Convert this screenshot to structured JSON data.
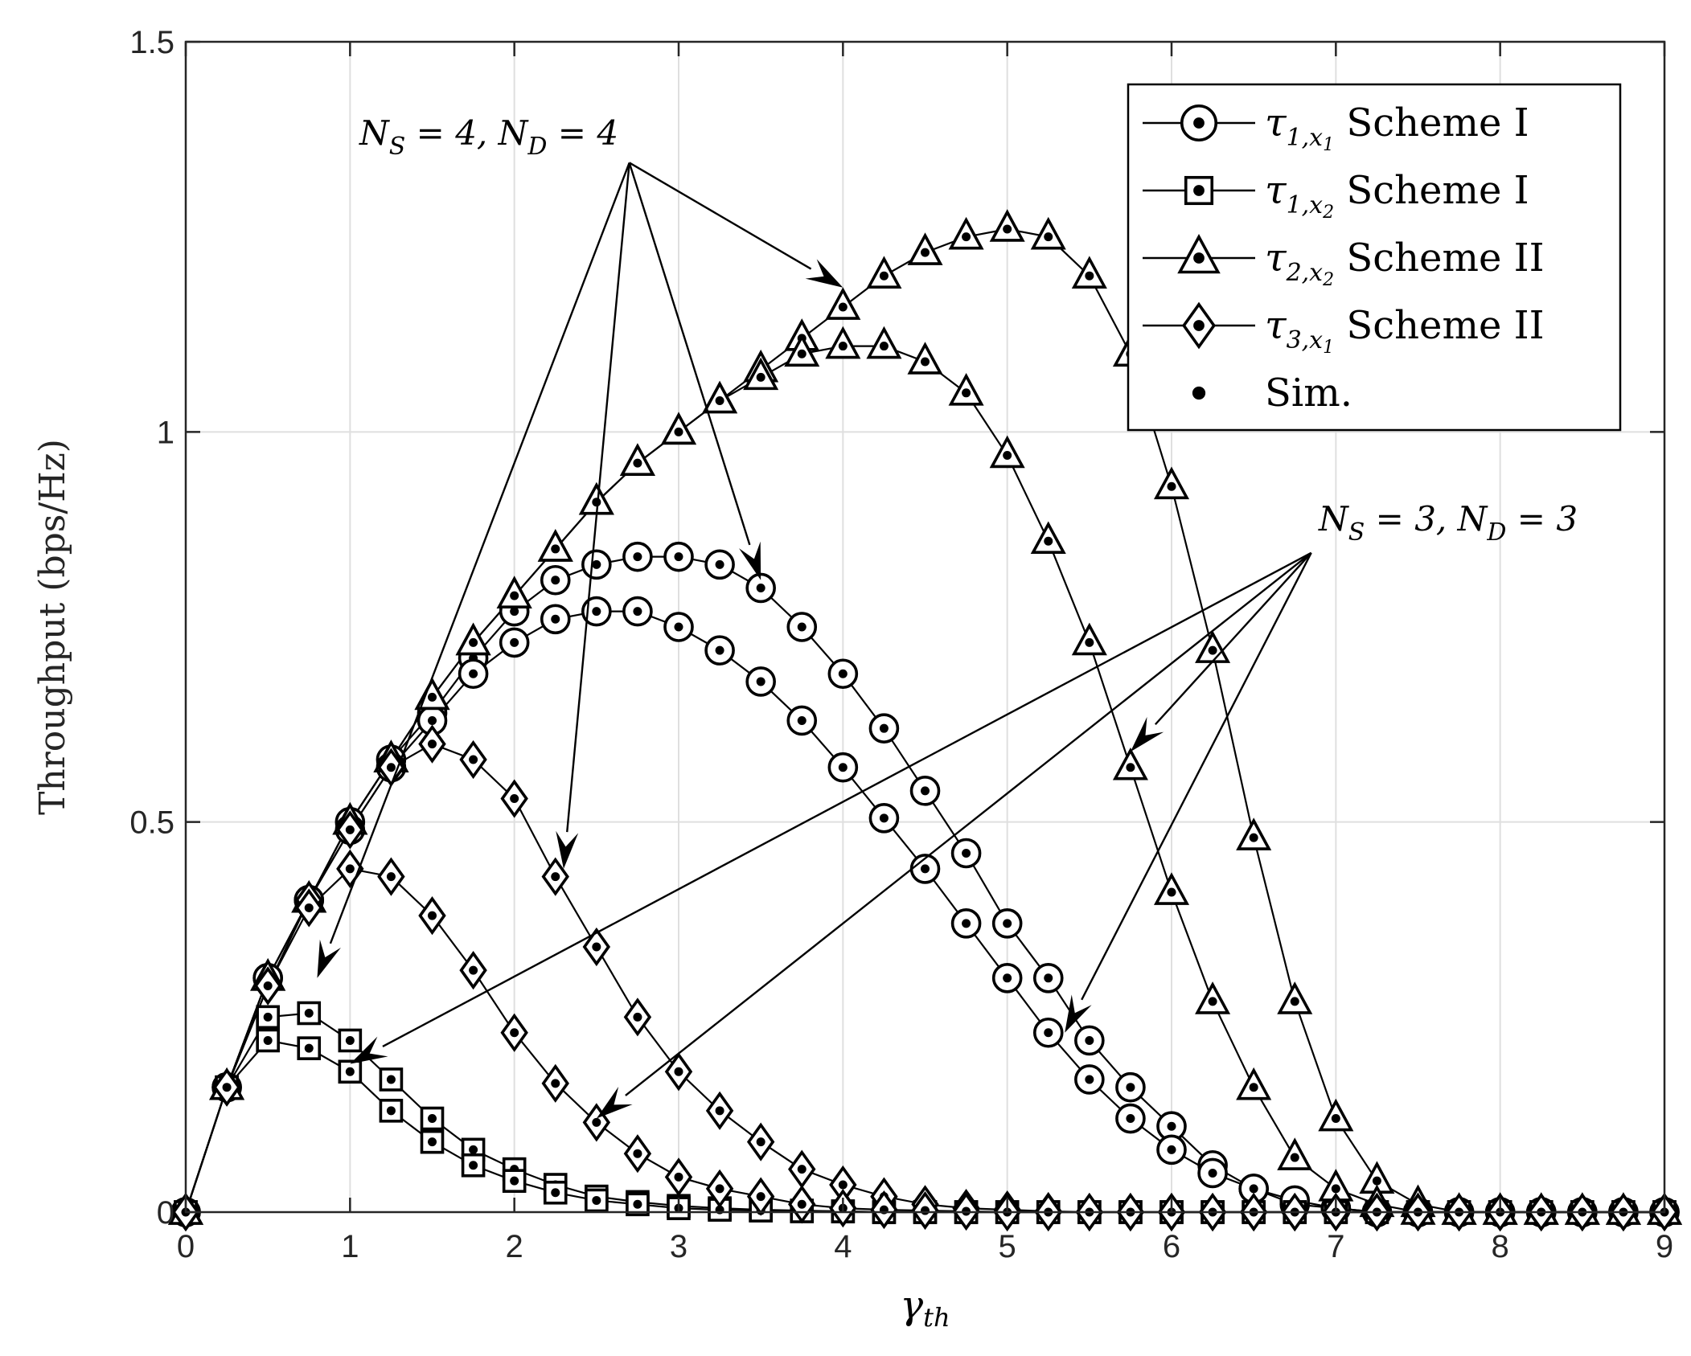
{
  "chart_data": {
    "type": "line",
    "xlabel": "γ",
    "xlabel_sub": "th",
    "ylabel": "Throughput (bps/Hz)",
    "xlim": [
      0,
      9
    ],
    "ylim": [
      0,
      1.5
    ],
    "xticks": [
      0,
      1,
      2,
      3,
      4,
      5,
      6,
      7,
      8,
      9
    ],
    "xtick_labels": [
      "0",
      "1",
      "2",
      "3",
      "4",
      "5",
      "6",
      "7",
      "8",
      "9"
    ],
    "yticks": [
      0,
      0.5,
      1,
      1.5
    ],
    "ytick_labels": [
      "0",
      "0.5",
      "1",
      "1.5"
    ],
    "grid": true,
    "legend_position": "top-right",
    "x": [
      0,
      0.25,
      0.5,
      0.75,
      1,
      1.25,
      1.5,
      1.75,
      2,
      2.25,
      2.5,
      2.75,
      3,
      3.25,
      3.5,
      3.75,
      4,
      4.25,
      4.5,
      4.75,
      5,
      5.25,
      5.5,
      5.75,
      6,
      6.25,
      6.5,
      6.75,
      7,
      7.25,
      7.5,
      7.75,
      8,
      8.25,
      8.5,
      8.75,
      9
    ],
    "legend": [
      {
        "marker": "circle",
        "symbol": "τ",
        "sub": "1,x",
        "subsub": "1",
        "text": "Scheme I"
      },
      {
        "marker": "square",
        "symbol": "τ",
        "sub": "1,x",
        "subsub": "2",
        "text": "Scheme I"
      },
      {
        "marker": "triangle",
        "symbol": "τ",
        "sub": "2,x",
        "subsub": "2",
        "text": "Scheme II"
      },
      {
        "marker": "diamond",
        "symbol": "τ",
        "sub": "3,x",
        "subsub": "1",
        "text": "Scheme II"
      },
      {
        "marker": "dot",
        "symbol": "",
        "sub": "",
        "subsub": "",
        "text": "Sim."
      }
    ],
    "series": [
      {
        "legend_index": 0,
        "case": "N_S = 4, N_D = 4",
        "marker": "circle",
        "values": [
          0,
          0.16,
          0.3,
          0.4,
          0.5,
          0.58,
          0.64,
          0.71,
          0.77,
          0.81,
          0.83,
          0.84,
          0.84,
          0.83,
          0.8,
          0.75,
          0.69,
          0.62,
          0.54,
          0.46,
          0.37,
          0.3,
          0.22,
          0.16,
          0.11,
          0.06,
          0.03,
          0.01,
          0.005,
          0,
          0,
          0,
          0,
          0,
          0,
          0,
          0
        ]
      },
      {
        "legend_index": 0,
        "case": "N_S = 3, N_D = 3",
        "marker": "circle",
        "values": [
          0,
          0.16,
          0.3,
          0.4,
          0.49,
          0.57,
          0.63,
          0.69,
          0.73,
          0.76,
          0.77,
          0.77,
          0.75,
          0.72,
          0.68,
          0.63,
          0.57,
          0.505,
          0.44,
          0.37,
          0.3,
          0.23,
          0.17,
          0.12,
          0.08,
          0.05,
          0.03,
          0.015,
          0.005,
          0,
          0,
          0,
          0,
          0,
          0,
          0,
          0
        ]
      },
      {
        "legend_index": 1,
        "case": "N_S = 4, N_D = 4",
        "marker": "square",
        "values": [
          0,
          0.16,
          0.25,
          0.255,
          0.22,
          0.17,
          0.12,
          0.08,
          0.055,
          0.035,
          0.02,
          0.013,
          0.008,
          0.005,
          0.003,
          0.002,
          0.001,
          0,
          0,
          0,
          0,
          0,
          0,
          0,
          0,
          0,
          0,
          0,
          0,
          0,
          0,
          0,
          0,
          0,
          0,
          0,
          0
        ]
      },
      {
        "legend_index": 1,
        "case": "N_S = 3, N_D = 3",
        "marker": "square",
        "values": [
          0,
          0.16,
          0.22,
          0.21,
          0.18,
          0.13,
          0.09,
          0.06,
          0.04,
          0.025,
          0.015,
          0.01,
          0.005,
          0.003,
          0.002,
          0.001,
          0.001,
          0,
          0,
          0,
          0,
          0,
          0,
          0,
          0,
          0,
          0,
          0,
          0,
          0,
          0,
          0,
          0,
          0,
          0,
          0,
          0
        ]
      },
      {
        "legend_index": 2,
        "case": "N_S = 4, N_D = 4",
        "marker": "triangle",
        "values": [
          0,
          0.16,
          0.3,
          0.4,
          0.5,
          0.58,
          0.66,
          0.73,
          0.79,
          0.85,
          0.91,
          0.96,
          1.0,
          1.04,
          1.08,
          1.12,
          1.16,
          1.2,
          1.23,
          1.25,
          1.26,
          1.25,
          1.2,
          1.1,
          0.93,
          0.72,
          0.48,
          0.27,
          0.12,
          0.04,
          0.01,
          0,
          0,
          0,
          0,
          0,
          0
        ]
      },
      {
        "legend_index": 2,
        "case": "N_S = 3, N_D = 3",
        "marker": "triangle",
        "values": [
          0,
          0.16,
          0.3,
          0.4,
          0.5,
          0.58,
          0.66,
          0.73,
          0.79,
          0.85,
          0.91,
          0.96,
          1.0,
          1.04,
          1.07,
          1.1,
          1.11,
          1.11,
          1.09,
          1.05,
          0.97,
          0.86,
          0.73,
          0.57,
          0.41,
          0.27,
          0.16,
          0.07,
          0.03,
          0.01,
          0,
          0,
          0,
          0,
          0,
          0,
          0
        ]
      },
      {
        "legend_index": 3,
        "case": "N_S = 4, N_D = 4",
        "marker": "diamond",
        "values": [
          0,
          0.16,
          0.29,
          0.4,
          0.49,
          0.57,
          0.6,
          0.58,
          0.53,
          0.43,
          0.34,
          0.25,
          0.18,
          0.13,
          0.09,
          0.055,
          0.035,
          0.02,
          0.01,
          0.005,
          0.003,
          0.001,
          0,
          0,
          0,
          0,
          0,
          0,
          0,
          0,
          0,
          0,
          0,
          0,
          0,
          0,
          0
        ]
      },
      {
        "legend_index": 3,
        "case": "N_S = 3, N_D = 3",
        "marker": "diamond",
        "values": [
          0,
          0.16,
          0.29,
          0.39,
          0.44,
          0.43,
          0.38,
          0.31,
          0.23,
          0.165,
          0.115,
          0.075,
          0.045,
          0.03,
          0.02,
          0.01,
          0.005,
          0.003,
          0.002,
          0.001,
          0,
          0,
          0,
          0,
          0,
          0,
          0,
          0,
          0,
          0,
          0,
          0,
          0,
          0,
          0,
          0,
          0
        ]
      }
    ],
    "annotations": [
      {
        "label": "N",
        "sub1": "S",
        "mid": " = 4, N",
        "sub2": "D",
        "tail": " = 4",
        "origin": [
          2.7,
          1.345
        ],
        "targets": [
          [
            0.8,
            0.3
          ],
          [
            2.3,
            0.44
          ],
          [
            3.5,
            0.81
          ],
          [
            4.0,
            1.185
          ]
        ]
      },
      {
        "label": "N",
        "sub1": "S",
        "mid": " = 3, N",
        "sub2": "D",
        "tail": " = 3",
        "origin": [
          6.85,
          0.845
        ],
        "targets": [
          [
            1.0,
            0.19
          ],
          [
            2.5,
            0.12
          ],
          [
            5.35,
            0.23
          ],
          [
            5.75,
            0.59
          ]
        ]
      }
    ]
  }
}
